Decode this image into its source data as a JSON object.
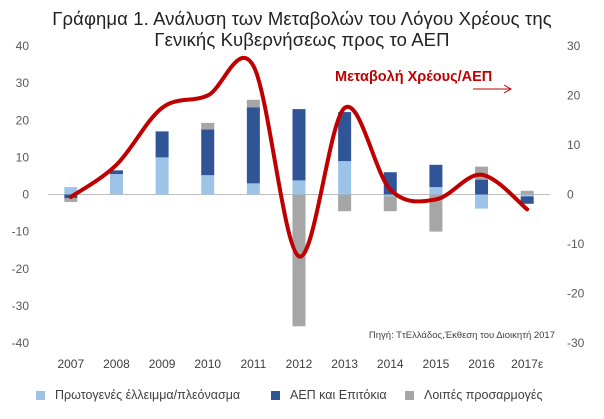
{
  "title": {
    "line1": "Γράφημα 1. Ανάλυση των Μεταβολών του Λόγου Χρέους της",
    "line2": "Γενικής Κυβερνήσεως προς το ΑΕΠ"
  },
  "source": "Πηγή: ΤτΕλλάδος,Έκθεση του Διοικητή 2017",
  "annotation": "Μεταβολή Χρέους/ΑΕΠ",
  "colors": {
    "primary": "#9DC3E6",
    "gdp_interest": "#2F5597",
    "other": "#A6A6A6",
    "debt_line": "#C00000",
    "grid": "#D9D9D9"
  },
  "chart_data": {
    "type": "bar",
    "stacked": true,
    "categories": [
      "2007",
      "2008",
      "2009",
      "2010",
      "2011",
      "2012",
      "2013",
      "2014",
      "2015",
      "2016",
      "2017ε"
    ],
    "series": [
      {
        "name": "Πρωτογενές έλλειμμα/πλεόνασμα",
        "axis": "left",
        "values": [
          2,
          5.5,
          10,
          5.2,
          3,
          3.8,
          9,
          -0.5,
          2,
          -3.8,
          -0.5
        ]
      },
      {
        "name": "ΑΕΠ και Επιτόκια",
        "axis": "left",
        "values": [
          -1,
          1,
          7,
          12.3,
          20.5,
          19.2,
          13.2,
          6,
          6,
          4,
          -2
        ]
      },
      {
        "name": "Λοιπές προσαρμογές",
        "axis": "left",
        "values": [
          -1,
          0,
          0,
          1.8,
          2,
          -35.5,
          -4.5,
          -4,
          -10,
          3.5,
          1
        ]
      }
    ],
    "line_series": {
      "name": "Μεταβολή Χρέους/ΑΕΠ",
      "axis": "right",
      "values": [
        -0.5,
        6,
        17.5,
        20,
        26,
        -12.5,
        17.5,
        1,
        -1,
        4,
        -3
      ]
    },
    "yaxis_left": {
      "ticks": [
        40,
        30,
        20,
        10,
        0,
        -10,
        -20,
        -30,
        -40
      ],
      "range": [
        -40,
        40
      ]
    },
    "yaxis_right": {
      "ticks": [
        30,
        20,
        10,
        0,
        -10,
        -20,
        -30
      ],
      "range": [
        -30,
        30
      ]
    },
    "grid": false,
    "legend": "bottom"
  }
}
